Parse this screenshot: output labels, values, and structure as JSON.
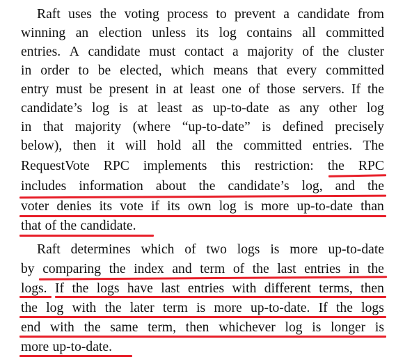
{
  "paragraphs": [
    {
      "lines": [
        "Raft uses the voting process to prevent a candidate from",
        "winning an election unless its log contains all committed",
        "entries. A candidate must contact a majority of the cluster",
        "in order to be elected, which means that every committed",
        "entry must be present in at least one of those servers. If the",
        "candidate’s log is at least as up-to-date as any other log",
        "in that majority (where “up-to-date” is defined precisely",
        "below), then it will hold all the committed entries. The",
        "RequestVote RPC implements this restriction: the RPC",
        "includes information about the candidate’s log, and the",
        "voter denies its vote if its own log is more up-to-date than",
        "that of the candidate."
      ]
    },
    {
      "lines": [
        "Raft determines which of two logs is more up-to-date",
        "by comparing the index and term of the last entries in the",
        "logs. If the logs have last entries with different terms, then",
        "the log with the later term is more up-to-date. If the logs",
        "end with the same term, then whichever log is longer is",
        "more up-to-date."
      ]
    }
  ],
  "highlight_color": "#e8202a"
}
